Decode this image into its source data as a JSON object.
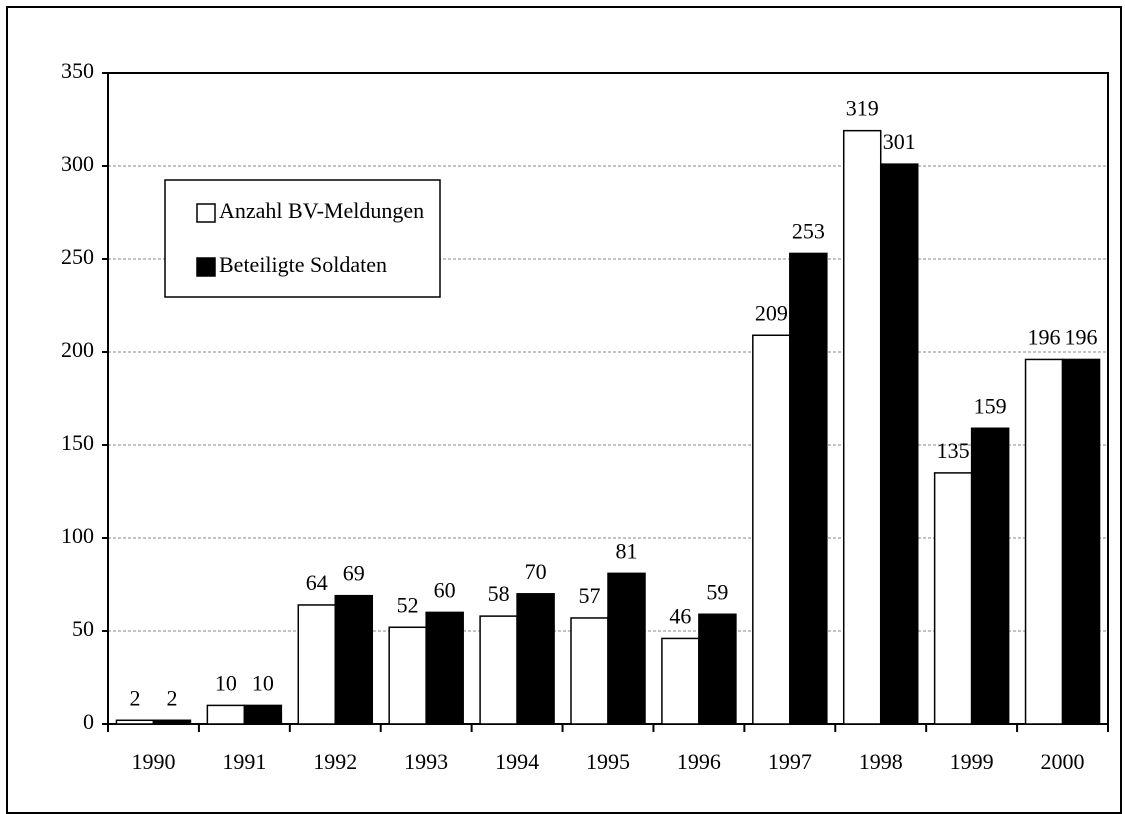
{
  "chart_data": {
    "type": "bar",
    "categories": [
      "1990",
      "1991",
      "1992",
      "1993",
      "1994",
      "1995",
      "1996",
      "1997",
      "1998",
      "1999",
      "2000"
    ],
    "series": [
      {
        "name": "Anzahl BV-Meldungen",
        "color": "#ffffff",
        "values": [
          2,
          10,
          64,
          52,
          58,
          57,
          46,
          209,
          319,
          135,
          196
        ]
      },
      {
        "name": "Beteiligte Soldaten",
        "color": "#000000",
        "values": [
          2,
          10,
          69,
          60,
          70,
          81,
          59,
          253,
          301,
          159,
          196
        ]
      }
    ],
    "ylim": [
      0,
      350
    ],
    "yticks": [
      0,
      50,
      100,
      150,
      200,
      250,
      300,
      350
    ],
    "grid": true,
    "legend": "upper left"
  }
}
